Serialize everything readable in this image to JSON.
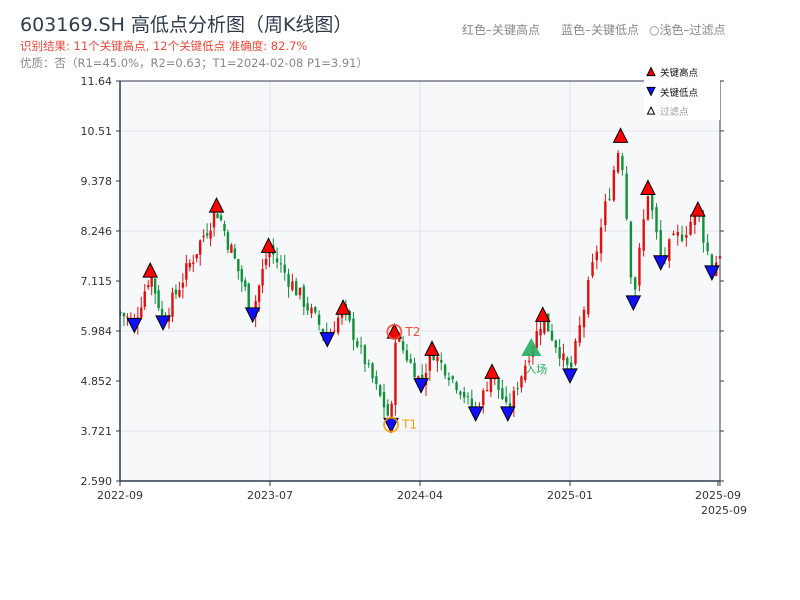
{
  "header": {
    "title": "603169.SH 高低点分析图（周K线图）",
    "result": "识别结果: 11个关键高点, 12个关键低点  准确度: 82.7%",
    "quality": "优质：否（R1=45.0%，R2=0.63；T1=2024-02-08 P1=3.91）",
    "hint_red": "红色–关键高点",
    "hint_blue": "蓝色–关键低点",
    "hint_light": "○浅色–过滤点"
  },
  "chart_data": {
    "type": "candlestick",
    "yticks": [
      "2.590",
      "3.721",
      "4.852",
      "5.984",
      "7.115",
      "8.246",
      "9.378",
      "10.51",
      "11.64"
    ],
    "ylim": [
      2.59,
      11.64
    ],
    "xticks": [
      "2022-09",
      "2023-07",
      "2024-04",
      "2025-01",
      "2025-09",
      "2025-09"
    ],
    "xtick_dates": [
      "2022-09-01",
      "2023-07-01",
      "2024-04-01",
      "2025-01-01",
      "2025-09-01",
      "2025-09-05"
    ],
    "legend": {
      "placement": "top-right",
      "items": [
        "关键高点",
        "关键低点",
        "过滤点"
      ]
    },
    "colors": {
      "up": "#e01010",
      "down": "#10903a",
      "high": "#ff0000",
      "low": "#1010ff",
      "t1": "#f39c12",
      "t2": "#e74c3c",
      "entry": "#27ae60"
    },
    "highs": [
      {
        "date": "2022-11-01",
        "price": 7.3
      },
      {
        "date": "2023-03-15",
        "price": 8.77
      },
      {
        "date": "2023-06-28",
        "price": 7.86
      },
      {
        "date": "2023-11-12",
        "price": 6.46
      },
      {
        "date": "2024-02-14",
        "price": 5.92
      },
      {
        "date": "2024-04-23",
        "price": 5.53
      },
      {
        "date": "2024-08-11",
        "price": 5.01
      },
      {
        "date": "2024-11-12",
        "price": 6.3
      },
      {
        "date": "2025-03-25",
        "price": 10.35
      },
      {
        "date": "2025-05-09",
        "price": 9.17
      },
      {
        "date": "2025-07-30",
        "price": 8.68
      }
    ],
    "lows": [
      {
        "date": "2022-09-30",
        "price": 6.17
      },
      {
        "date": "2022-11-27",
        "price": 6.23
      },
      {
        "date": "2023-05-27",
        "price": 6.41
      },
      {
        "date": "2023-10-14",
        "price": 5.85
      },
      {
        "date": "2024-02-08",
        "price": 3.91
      },
      {
        "date": "2024-04-03",
        "price": 4.81
      },
      {
        "date": "2024-07-12",
        "price": 4.17
      },
      {
        "date": "2024-09-09",
        "price": 4.17
      },
      {
        "date": "2025-01-01",
        "price": 5.03
      },
      {
        "date": "2025-04-15",
        "price": 6.68
      },
      {
        "date": "2025-05-30",
        "price": 7.59
      },
      {
        "date": "2025-08-22",
        "price": 7.36
      }
    ],
    "t1": {
      "label": "T1",
      "date": "2024-02-08",
      "price": 3.91
    },
    "t2": {
      "label": "T2",
      "date": "2024-02-14",
      "price": 5.92
    },
    "entry": {
      "label": "入场",
      "date": "2024-10-22",
      "price": 5.6
    }
  }
}
